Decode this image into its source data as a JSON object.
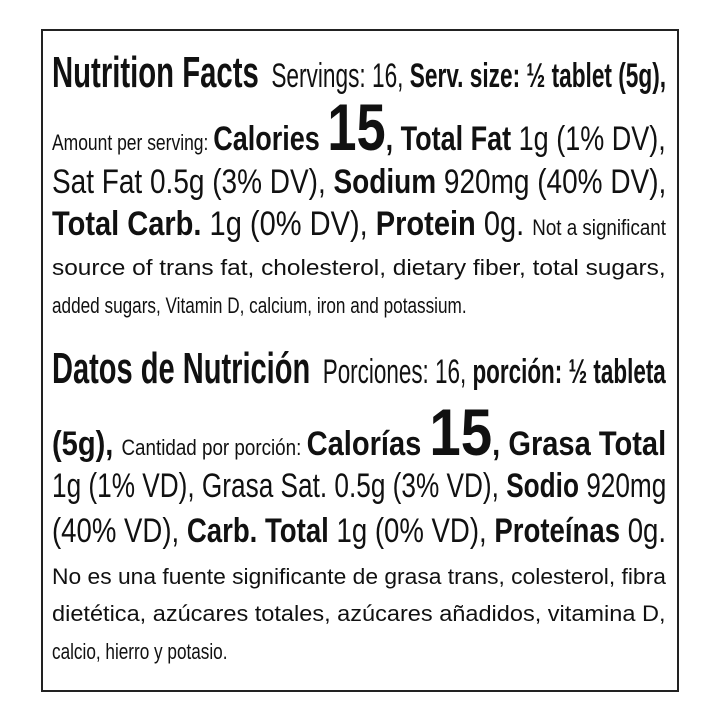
{
  "english": {
    "lines": [
      [
        [
          "h",
          "Nutrition Facts"
        ],
        [
          "r",
          "  Servings: 16, "
        ],
        [
          "b",
          "Serv. size: ½ tablet (5g),"
        ]
      ],
      [
        [
          "s",
          "Amount per serving: "
        ],
        [
          "b",
          "Calories "
        ],
        [
          "xl",
          "15"
        ],
        [
          "b",
          ", Total Fat"
        ],
        [
          "r",
          " 1g (1% DV),"
        ]
      ],
      [
        [
          "r",
          "Sat Fat 0.5g (3% DV), "
        ],
        [
          "b",
          "Sodium"
        ],
        [
          "r",
          " 920mg (40% DV),"
        ]
      ],
      [
        [
          "b",
          "Total Carb."
        ],
        [
          "r",
          " 1g (0% DV), "
        ],
        [
          "b",
          "Protein"
        ],
        [
          "r",
          " 0g. "
        ],
        [
          "s",
          "Not a significant"
        ]
      ],
      [
        [
          "s",
          "source of trans fat, cholesterol, dietary fiber, total sugars,"
        ]
      ],
      [
        [
          "s",
          "added sugars, Vitamin D, calcium, iron and potassium."
        ]
      ]
    ]
  },
  "spanish": {
    "lines": [
      [
        [
          "h",
          "Datos de Nutrición"
        ],
        [
          "r",
          "  Porciones: 16, "
        ],
        [
          "b",
          "porción: ½ tableta"
        ]
      ],
      [
        [
          "b",
          "(5g), "
        ],
        [
          "s",
          "Cantidad por porción: "
        ],
        [
          "b",
          "Calorías "
        ],
        [
          "xl",
          "15"
        ],
        [
          "b",
          ", Grasa Total"
        ]
      ],
      [
        [
          "r",
          "1g (1% VD), Grasa Sat. 0.5g (3% VD), "
        ],
        [
          "b",
          "Sodio"
        ],
        [
          "r",
          " 920mg"
        ]
      ],
      [
        [
          "r",
          "(40% VD), "
        ],
        [
          "b",
          "Carb. Total"
        ],
        [
          "r",
          " 1g (0% VD), "
        ],
        [
          "b",
          "Proteínas"
        ],
        [
          "r",
          " 0g."
        ]
      ],
      [
        [
          "s",
          "No es una fuente significante de grasa trans, colesterol, fibra"
        ]
      ],
      [
        [
          "s",
          "dietética, azúcares totales, azúcares añadidos, vitamina D,"
        ]
      ],
      [
        [
          "s",
          "calcio, hierro y potasio."
        ]
      ]
    ]
  },
  "colors": {
    "text": "#111111",
    "border": "#222222",
    "background": "#ffffff"
  }
}
